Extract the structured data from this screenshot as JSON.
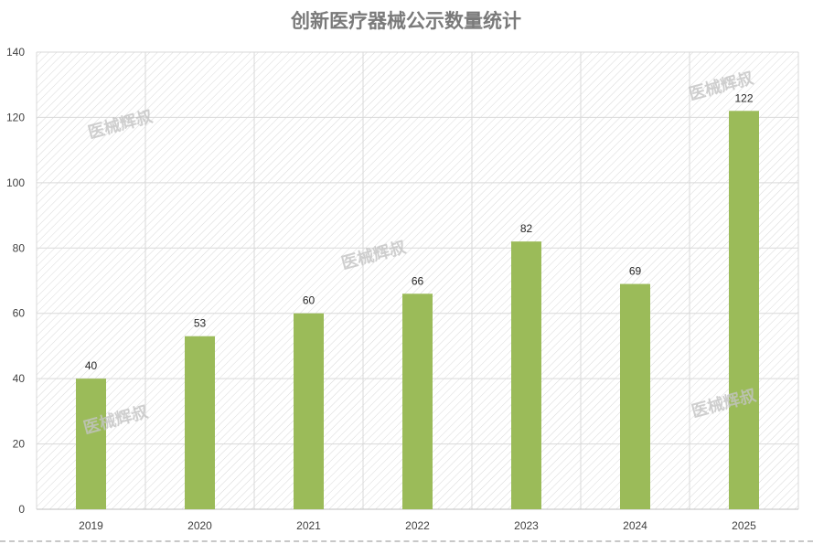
{
  "chart_data": {
    "type": "bar",
    "title": "创新医疗器械公示数量统计",
    "categories": [
      "2019",
      "2020",
      "2021",
      "2022",
      "2023",
      "2024",
      "2025"
    ],
    "values": [
      40,
      53,
      60,
      66,
      82,
      69,
      122
    ],
    "ylim": [
      0,
      140
    ],
    "yticks": [
      0,
      20,
      40,
      60,
      80,
      100,
      120,
      140
    ],
    "xlabel": "",
    "ylabel": "",
    "grid": true,
    "bar_color": "#9bbb59",
    "data_labels": true
  },
  "watermark": "医械辉叔"
}
